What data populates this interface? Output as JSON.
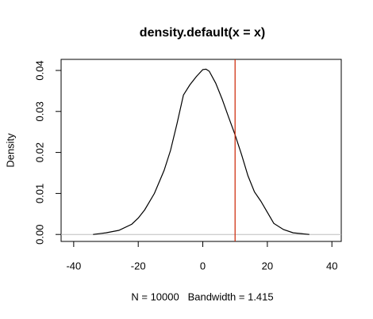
{
  "chart_data": {
    "type": "line",
    "title": "density.default(x = x)",
    "xlabel": "N = 10000   Bandwidth = 1.415",
    "ylabel": "Density",
    "x": [
      -34,
      -30,
      -26,
      -22,
      -20,
      -18,
      -15,
      -12,
      -10,
      -8,
      -6,
      -4,
      -2,
      0,
      1,
      2,
      4,
      6,
      8,
      10,
      12,
      14,
      16,
      18,
      20,
      22,
      25,
      28,
      33
    ],
    "values": [
      0.0,
      0.0004,
      0.001,
      0.0025,
      0.004,
      0.006,
      0.01,
      0.0156,
      0.0205,
      0.027,
      0.034,
      0.0365,
      0.0385,
      0.0402,
      0.0403,
      0.0398,
      0.0369,
      0.033,
      0.0286,
      0.0243,
      0.0195,
      0.0143,
      0.0104,
      0.0081,
      0.0054,
      0.0027,
      0.0012,
      0.0004,
      0.0
    ],
    "color": "#000000",
    "xlim": [
      -43.9,
      42.9
    ],
    "ylim": [
      -0.0017,
      0.0427
    ],
    "xticks": [
      -40,
      -20,
      0,
      20,
      40
    ],
    "yticks": [
      {
        "value": 0,
        "label": "0.00"
      },
      {
        "value": 0.01,
        "label": "0.01"
      },
      {
        "value": 0.02,
        "label": "0.02"
      },
      {
        "value": 0.03,
        "label": "0.03"
      },
      {
        "value": 0.04,
        "label": "0.04"
      }
    ],
    "zero_line_color": "#bebebe",
    "vline": 10,
    "vline_color": "#cc2200"
  }
}
